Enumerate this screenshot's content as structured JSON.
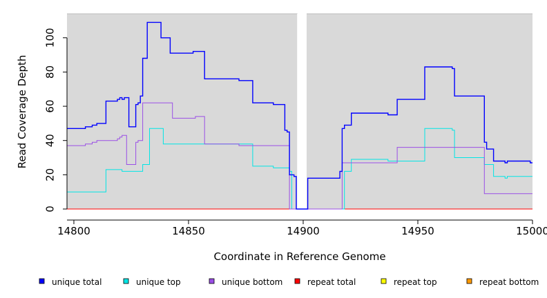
{
  "chart_data": {
    "type": "line",
    "step": true,
    "xlabel": "Coordinate in Reference Genome",
    "ylabel": "Read Coverage Depth",
    "xlim": [
      14797,
      15000
    ],
    "ylim": [
      0,
      114
    ],
    "xticks": [
      14800,
      14850,
      14900,
      14950,
      15000
    ],
    "yticks": [
      0,
      20,
      40,
      60,
      80,
      100
    ],
    "gap": [
      14897.5,
      14901.5
    ],
    "panel_background": "#d9d9d9",
    "series": [
      {
        "name": "unique total",
        "color": "#0000ff",
        "points": [
          [
            14797,
            47
          ],
          [
            14801,
            47
          ],
          [
            14805,
            48
          ],
          [
            14808,
            49
          ],
          [
            14810,
            50
          ],
          [
            14814,
            63
          ],
          [
            14819,
            64
          ],
          [
            14820,
            65
          ],
          [
            14821,
            64
          ],
          [
            14822,
            65
          ],
          [
            14824,
            48
          ],
          [
            14827,
            61
          ],
          [
            14828,
            62
          ],
          [
            14829,
            66
          ],
          [
            14830,
            88
          ],
          [
            14832,
            109
          ],
          [
            14838,
            100
          ],
          [
            14842,
            91
          ],
          [
            14852,
            92
          ],
          [
            14857,
            76
          ],
          [
            14872,
            75
          ],
          [
            14878,
            62
          ],
          [
            14887,
            61
          ],
          [
            14892,
            46
          ],
          [
            14893,
            45
          ],
          [
            14894,
            20
          ],
          [
            14896,
            19
          ],
          [
            14897,
            0
          ],
          [
            14902,
            18
          ],
          [
            14916,
            22
          ],
          [
            14917,
            47
          ],
          [
            14918,
            49
          ],
          [
            14921,
            56
          ],
          [
            14937,
            55
          ],
          [
            14941,
            64
          ],
          [
            14953,
            83
          ],
          [
            14965,
            82
          ],
          [
            14966,
            66
          ],
          [
            14979,
            39
          ],
          [
            14980,
            35
          ],
          [
            14983,
            28
          ],
          [
            14988,
            27
          ],
          [
            14989,
            28
          ],
          [
            14999,
            27
          ]
        ]
      },
      {
        "name": "unique top",
        "color": "#00e5e5",
        "points": [
          [
            14797,
            10
          ],
          [
            14814,
            23
          ],
          [
            14821,
            22
          ],
          [
            14830,
            26
          ],
          [
            14833,
            47
          ],
          [
            14839,
            38
          ],
          [
            14872,
            38
          ],
          [
            14878,
            25
          ],
          [
            14887,
            24
          ],
          [
            14894,
            22
          ],
          [
            14895,
            0
          ],
          [
            14918,
            22
          ],
          [
            14921,
            29
          ],
          [
            14937,
            28
          ],
          [
            14953,
            47
          ],
          [
            14965,
            46
          ],
          [
            14966,
            30
          ],
          [
            14979,
            26
          ],
          [
            14983,
            19
          ],
          [
            14988,
            18
          ],
          [
            14989,
            19
          ],
          [
            15000,
            19
          ]
        ]
      },
      {
        "name": "unique bottom",
        "color": "#9a4ee6",
        "points": [
          [
            14797,
            37
          ],
          [
            14805,
            38
          ],
          [
            14808,
            39
          ],
          [
            14810,
            40
          ],
          [
            14819,
            41
          ],
          [
            14820,
            42
          ],
          [
            14821,
            43
          ],
          [
            14823,
            26
          ],
          [
            14827,
            39
          ],
          [
            14828,
            40
          ],
          [
            14830,
            62
          ],
          [
            14843,
            53
          ],
          [
            14853,
            54
          ],
          [
            14857,
            38
          ],
          [
            14872,
            37
          ],
          [
            14894,
            0
          ],
          [
            14917,
            27
          ],
          [
            14941,
            36
          ],
          [
            14979,
            9
          ],
          [
            15000,
            9
          ]
        ]
      },
      {
        "name": "repeat total",
        "color": "#ff0000",
        "points": [
          [
            14797,
            0
          ],
          [
            15000,
            0
          ]
        ]
      },
      {
        "name": "repeat top",
        "color": "#ffff00",
        "points": [
          [
            14797,
            0
          ],
          [
            15000,
            0
          ]
        ]
      },
      {
        "name": "repeat bottom",
        "color": "#ff9900",
        "points": [
          [
            14797,
            0
          ],
          [
            15000,
            0
          ]
        ]
      }
    ],
    "legend": [
      {
        "label": "unique total",
        "color": "#0000ff"
      },
      {
        "label": "unique top",
        "color": "#00e5e5"
      },
      {
        "label": "unique bottom",
        "color": "#9a4ee6"
      },
      {
        "label": "repeat total",
        "color": "#ff0000"
      },
      {
        "label": "repeat top",
        "color": "#ffff00"
      },
      {
        "label": "repeat bottom",
        "color": "#ff9900"
      }
    ]
  }
}
